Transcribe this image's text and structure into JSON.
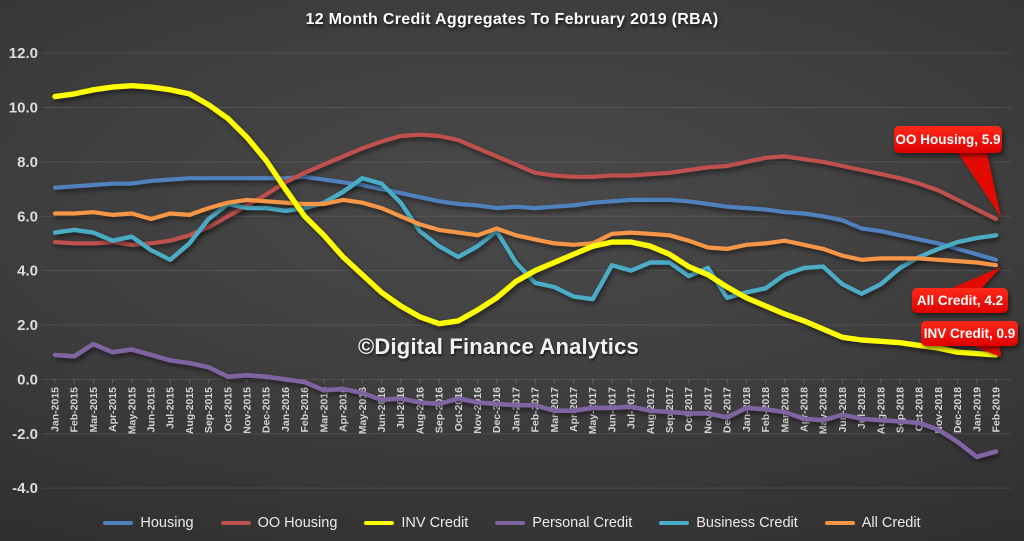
{
  "chart_data": {
    "type": "line",
    "title": "12 Month Credit Aggregates To February 2019 (RBA)",
    "watermark": "©Digital Finance Analytics",
    "xlabel": "",
    "ylabel": "",
    "ylim": [
      -4.0,
      12.0
    ],
    "grid": true,
    "legend_position": "bottom",
    "y_tick_labels": [
      "12.0",
      "10.0",
      "8.0",
      "6.0",
      "4.0",
      "2.0",
      "0.0",
      "-2.0",
      "-4.0"
    ],
    "categories": [
      "Jan-2015",
      "Feb-2015",
      "Mar-2015",
      "Apr-2015",
      "May-2015",
      "Jun-2015",
      "Jul-2015",
      "Aug-2015",
      "Sep-2015",
      "Oct-2015",
      "Nov-2015",
      "Dec-2015",
      "Jan-2016",
      "Feb-2016",
      "Mar-2016",
      "Apr-2016",
      "May-2016",
      "Jun-2016",
      "Jul-2016",
      "Aug-2016",
      "Sep-2016",
      "Oct-2016",
      "Nov-2016",
      "Dec-2016",
      "Jan-2017",
      "Feb-2017",
      "Mar-2017",
      "Apr-2017",
      "May-2017",
      "Jun-2017",
      "Jul-2017",
      "Aug-2017",
      "Sep-2017",
      "Oct-2017",
      "Nov-2017",
      "Dec-2017",
      "Jan-2018",
      "Feb-2018",
      "Mar-2018",
      "Apr-2018",
      "May-2018",
      "Jun-2018",
      "Jul-2018",
      "Aug-2018",
      "Sep-2018",
      "Oct-2018",
      "Nov-2018",
      "Dec-2018",
      "Jan-2019",
      "Feb-2019"
    ],
    "series": [
      {
        "name": "Housing",
        "color": "#4F81BD",
        "width": 4.2,
        "values": [
          7.05,
          7.1,
          7.15,
          7.2,
          7.2,
          7.3,
          7.35,
          7.4,
          7.4,
          7.4,
          7.4,
          7.4,
          7.4,
          7.45,
          7.35,
          7.25,
          7.15,
          7.0,
          6.85,
          6.7,
          6.55,
          6.45,
          6.4,
          6.3,
          6.35,
          6.3,
          6.35,
          6.4,
          6.5,
          6.55,
          6.6,
          6.6,
          6.6,
          6.55,
          6.45,
          6.35,
          6.3,
          6.25,
          6.15,
          6.1,
          6.0,
          5.85,
          5.55,
          5.45,
          5.3,
          5.15,
          5.0,
          4.8,
          4.6,
          4.4
        ]
      },
      {
        "name": "OO Housing",
        "color": "#C0504D",
        "width": 4.2,
        "values": [
          5.05,
          5.0,
          5.0,
          5.05,
          4.95,
          5.0,
          5.1,
          5.3,
          5.6,
          6.0,
          6.4,
          6.8,
          7.25,
          7.6,
          7.9,
          8.2,
          8.5,
          8.75,
          8.95,
          9.0,
          8.95,
          8.8,
          8.5,
          8.2,
          7.9,
          7.6,
          7.5,
          7.45,
          7.45,
          7.5,
          7.5,
          7.55,
          7.6,
          7.7,
          7.8,
          7.85,
          8.0,
          8.15,
          8.2,
          8.1,
          8.0,
          7.85,
          7.7,
          7.55,
          7.4,
          7.2,
          6.95,
          6.6,
          6.25,
          5.9
        ]
      },
      {
        "name": "INV Credit",
        "color": "#FFFF00",
        "width": 5.4,
        "values": [
          10.4,
          10.5,
          10.65,
          10.75,
          10.8,
          10.75,
          10.65,
          10.5,
          10.1,
          9.6,
          8.9,
          8.05,
          7.0,
          6.0,
          5.3,
          4.5,
          3.85,
          3.2,
          2.7,
          2.3,
          2.05,
          2.15,
          2.55,
          3.0,
          3.6,
          4.0,
          4.3,
          4.6,
          4.9,
          5.05,
          5.05,
          4.9,
          4.6,
          4.15,
          3.85,
          3.4,
          3.0,
          2.7,
          2.4,
          2.15,
          1.85,
          1.55,
          1.45,
          1.4,
          1.35,
          1.25,
          1.15,
          1.0,
          0.95,
          0.9
        ]
      },
      {
        "name": "Personal Credit",
        "color": "#8064A2",
        "width": 4.6,
        "values": [
          0.9,
          0.85,
          1.3,
          1.0,
          1.1,
          0.9,
          0.7,
          0.6,
          0.45,
          0.1,
          0.15,
          0.1,
          0.0,
          -0.1,
          -0.4,
          -0.35,
          -0.5,
          -0.75,
          -0.7,
          -0.85,
          -0.9,
          -0.7,
          -0.85,
          -0.9,
          -0.95,
          -0.95,
          -1.15,
          -1.15,
          -1.05,
          -1.05,
          -1.0,
          -1.15,
          -1.2,
          -1.25,
          -1.25,
          -1.4,
          -1.05,
          -1.1,
          -1.2,
          -1.45,
          -1.5,
          -1.3,
          -1.45,
          -1.5,
          -1.55,
          -1.6,
          -1.85,
          -2.3,
          -2.85,
          -2.65
        ]
      },
      {
        "name": "Business Credit",
        "color": "#4BACC6",
        "width": 4.4,
        "values": [
          5.4,
          5.5,
          5.4,
          5.1,
          5.25,
          4.75,
          4.4,
          5.0,
          5.9,
          6.45,
          6.3,
          6.3,
          6.2,
          6.3,
          6.5,
          6.9,
          7.4,
          7.2,
          6.5,
          5.45,
          4.9,
          4.5,
          4.9,
          5.45,
          4.3,
          3.55,
          3.4,
          3.05,
          2.95,
          4.2,
          4.0,
          4.3,
          4.3,
          3.8,
          4.1,
          3.0,
          3.2,
          3.35,
          3.85,
          4.1,
          4.15,
          3.5,
          3.15,
          3.5,
          4.1,
          4.5,
          4.8,
          5.05,
          5.2,
          5.3
        ]
      },
      {
        "name": "All Credit",
        "color": "#F79646",
        "width": 4.2,
        "values": [
          6.1,
          6.1,
          6.15,
          6.05,
          6.1,
          5.9,
          6.1,
          6.05,
          6.3,
          6.5,
          6.6,
          6.55,
          6.5,
          6.45,
          6.45,
          6.6,
          6.5,
          6.3,
          6.0,
          5.7,
          5.5,
          5.4,
          5.3,
          5.55,
          5.3,
          5.15,
          5.0,
          4.95,
          5.0,
          5.35,
          5.4,
          5.35,
          5.3,
          5.1,
          4.85,
          4.8,
          4.95,
          5.0,
          5.1,
          4.95,
          4.8,
          4.55,
          4.4,
          4.45,
          4.45,
          4.45,
          4.4,
          4.35,
          4.3,
          4.2
        ]
      }
    ],
    "annotations": [
      {
        "series": "OO Housing",
        "label": "OO Housing, 5.9",
        "value": 5.9
      },
      {
        "series": "All Credit",
        "label": "All Credit, 4.2",
        "value": 4.2
      },
      {
        "series": "INV Credit",
        "label": "INV Credit, 0.9",
        "value": 0.9
      }
    ]
  }
}
